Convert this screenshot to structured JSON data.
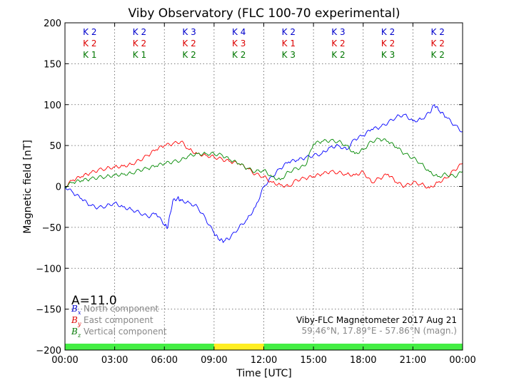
{
  "chart_data": {
    "type": "line",
    "title": "Viby Observatory (FLC 100-70 experimental)",
    "xlabel": "Time [UTC]",
    "ylabel": "Magnetic field [nT]",
    "xlim": [
      0,
      24
    ],
    "ylim": [
      -200,
      200
    ],
    "x_ticks": [
      0,
      3,
      6,
      9,
      12,
      15,
      18,
      21,
      24
    ],
    "x_tick_labels": [
      "00:00",
      "03:00",
      "06:00",
      "09:00",
      "12:00",
      "15:00",
      "18:00",
      "21:00",
      "00:00"
    ],
    "y_ticks": [
      -200,
      -150,
      -100,
      -50,
      0,
      50,
      100,
      150,
      200
    ],
    "y_tick_labels": [
      "−200",
      "−150",
      "−100",
      "−50",
      "0",
      "50",
      "100",
      "150",
      "200"
    ],
    "grid": true,
    "activity_index": "A=11.0",
    "info_line1": "Viby-FLC Magnetometer 2017 Aug 21",
    "info_line2": "59.46°N, 17.89°E - 57.86°N (magn.)",
    "k_index_rows": [
      {
        "color": "#0000cc",
        "labels": [
          "K 2",
          "K 2",
          "K 3",
          "K 4",
          "K 2",
          "K 3",
          "K 2",
          "K 2"
        ]
      },
      {
        "color": "#dd0000",
        "labels": [
          "K 2",
          "K 2",
          "K 2",
          "K 3",
          "K 1",
          "K 2",
          "K 2",
          "K 2"
        ]
      },
      {
        "color": "#007700",
        "labels": [
          "K 1",
          "K 1",
          "K 2",
          "K 2",
          "K 3",
          "K 2",
          "K 3",
          "K 2"
        ]
      }
    ],
    "status_bar": [
      {
        "start": 0,
        "end": 9,
        "color": "#44ee44"
      },
      {
        "start": 9,
        "end": 12,
        "color": "#ffee22"
      },
      {
        "start": 12,
        "end": 24,
        "color": "#44ee44"
      }
    ],
    "legend": [
      {
        "sym": "B",
        "sub": "x",
        "label": "North component",
        "color": "#0000cc"
      },
      {
        "sym": "B",
        "sub": "y",
        "label": "East component",
        "color": "#dd0000"
      },
      {
        "sym": "B",
        "sub": "z",
        "label": "Vertical component",
        "color": "#007700"
      }
    ],
    "series": [
      {
        "color": "#0000ff",
        "x": [
          0,
          0.5,
          1,
          1.5,
          2,
          2.5,
          3,
          3.5,
          4,
          4.5,
          5,
          5.5,
          6,
          6.2,
          6.5,
          6.8,
          7,
          7.5,
          8,
          8.5,
          9,
          9.3,
          9.6,
          10,
          10.5,
          11,
          11.5,
          12,
          12.5,
          13,
          13.5,
          14,
          14.5,
          15,
          15.5,
          16,
          16.5,
          17,
          17.5,
          18,
          18.5,
          19,
          19.5,
          20,
          20.5,
          21,
          21.5,
          22,
          22.3,
          22.6,
          23,
          23.5,
          24
        ],
        "values": [
          0,
          -8,
          -15,
          -23,
          -26,
          -24,
          -20,
          -25,
          -28,
          -32,
          -37,
          -33,
          -47,
          -50,
          -18,
          -14,
          -17,
          -20,
          -25,
          -40,
          -57,
          -65,
          -67,
          -62,
          -50,
          -40,
          -25,
          0,
          12,
          22,
          30,
          32,
          35,
          38,
          40,
          48,
          50,
          45,
          58,
          62,
          70,
          72,
          78,
          85,
          88,
          80,
          82,
          90,
          100,
          92,
          85,
          75,
          67
        ]
      },
      {
        "color": "#ff0000",
        "x": [
          0,
          0.5,
          1,
          1.5,
          2,
          2.5,
          3,
          3.5,
          4,
          4.5,
          5,
          5.5,
          6,
          6.5,
          7,
          7.5,
          8,
          8.5,
          9,
          9.5,
          10,
          10.5,
          11,
          11.5,
          12,
          12.5,
          13,
          13.5,
          14,
          14.5,
          15,
          15.5,
          16,
          16.5,
          17,
          17.5,
          18,
          18.5,
          19,
          19.5,
          20,
          20.5,
          21,
          21.5,
          22,
          22.5,
          23,
          23.5,
          24
        ],
        "values": [
          0,
          8,
          12,
          16,
          20,
          22,
          24,
          25,
          27,
          32,
          38,
          45,
          50,
          52,
          55,
          45,
          40,
          38,
          36,
          33,
          30,
          28,
          22,
          15,
          12,
          5,
          2,
          0,
          8,
          10,
          12,
          15,
          18,
          17,
          15,
          14,
          18,
          5,
          10,
          15,
          5,
          0,
          5,
          3,
          -2,
          5,
          10,
          20,
          28
        ]
      },
      {
        "color": "#008800",
        "x": [
          0,
          0.5,
          1,
          1.5,
          2,
          2.5,
          3,
          3.5,
          4,
          4.5,
          5,
          5.5,
          6,
          6.5,
          7,
          7.5,
          8,
          8.5,
          9,
          9.5,
          10,
          10.5,
          11,
          11.5,
          12,
          12.5,
          13,
          13.5,
          14,
          14.5,
          15,
          15.5,
          16,
          16.5,
          17,
          17.5,
          18,
          18.5,
          19,
          19.5,
          20,
          20.5,
          21,
          21.5,
          22,
          22.5,
          23,
          23.5,
          24
        ],
        "values": [
          0,
          5,
          7,
          9,
          11,
          12,
          14,
          15,
          16,
          20,
          22,
          25,
          28,
          30,
          32,
          38,
          40,
          40,
          40,
          38,
          32,
          28,
          22,
          18,
          20,
          12,
          8,
          18,
          22,
          25,
          52,
          55,
          56,
          55,
          50,
          40,
          45,
          55,
          58,
          55,
          48,
          40,
          35,
          28,
          18,
          12,
          15,
          12,
          18
        ]
      }
    ]
  }
}
